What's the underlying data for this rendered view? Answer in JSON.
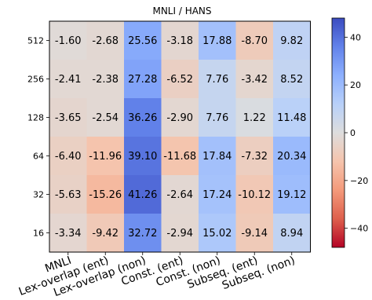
{
  "chart_data": {
    "type": "heatmap",
    "title": "MNLI / HANS",
    "xlabel": "",
    "ylabel": "",
    "x_categories": [
      "MNLI",
      "Lex-overlap (ent)",
      "Lex-overlap (non)",
      "Const. (ent)",
      "Const. (non)",
      "Subseq. (ent)",
      "Subseq. (non)"
    ],
    "y_categories": [
      "512",
      "256",
      "128",
      "64",
      "32",
      "16"
    ],
    "values": [
      [
        "-1.60",
        "-2.68",
        "25.56",
        "-3.18",
        "17.88",
        "-8.70",
        "9.82"
      ],
      [
        "-2.41",
        "-2.38",
        "27.28",
        "-6.52",
        "7.76",
        "-3.42",
        "8.52"
      ],
      [
        "-3.65",
        "-2.54",
        "36.26",
        "-2.90",
        "7.76",
        "1.22",
        "11.48"
      ],
      [
        "-6.40",
        "-11.96",
        "39.10",
        "-11.68",
        "17.84",
        "-7.32",
        "20.34"
      ],
      [
        "-5.63",
        "-15.26",
        "41.26",
        "-2.64",
        "17.24",
        "-10.12",
        "19.12"
      ],
      [
        "-3.34",
        "-9.42",
        "32.72",
        "-2.94",
        "15.02",
        "-9.14",
        "8.94"
      ]
    ],
    "colormap": "coolwarm",
    "color_range": [
      -48,
      48
    ],
    "colorbar_ticks": [
      "40",
      "20",
      "0",
      "−20",
      "−40"
    ],
    "grid": false
  }
}
